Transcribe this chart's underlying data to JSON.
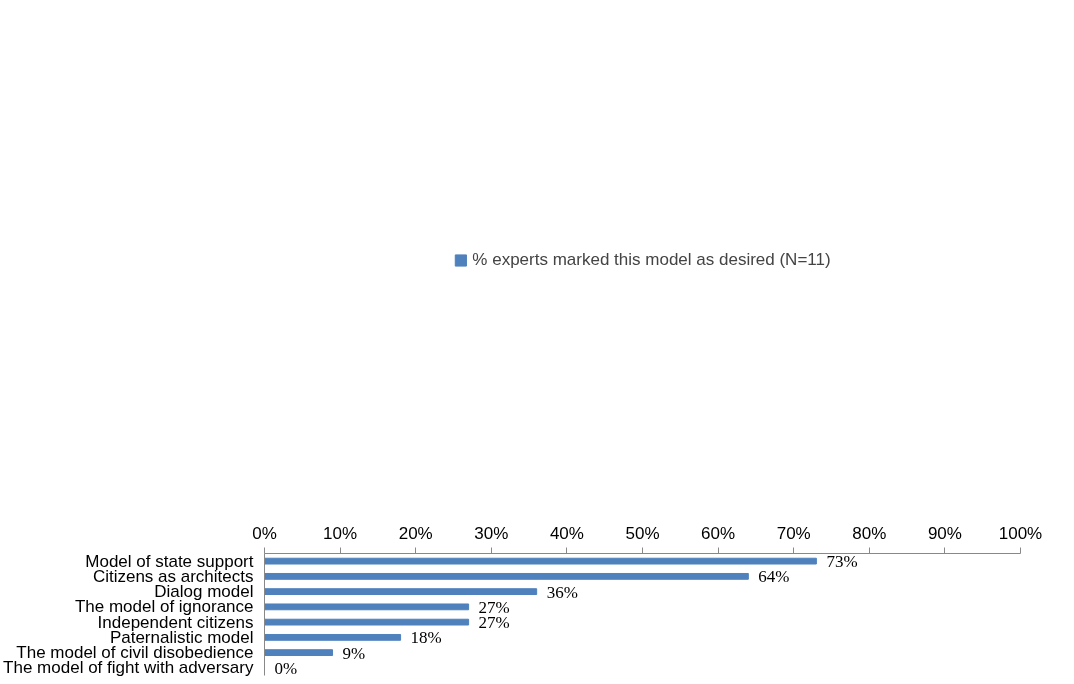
{
  "chart_data": {
    "type": "bar",
    "orientation": "horizontal",
    "categories": [
      "Model of state support",
      "Citizens as architects",
      "Dialog model",
      "The model of ignorance",
      "Independent citizens",
      "Paternalistic model",
      "The model of civil disobedience",
      "The model of fight with adversary"
    ],
    "series": [
      {
        "name": "% experts marked this model as desired (N=11)",
        "color": "#4f81bd",
        "values": [
          73,
          64,
          36,
          27,
          27,
          18,
          9,
          0
        ],
        "value_labels": [
          "73%",
          "64%",
          "36%",
          "27%",
          "27%",
          "18%",
          "9%",
          "0%"
        ]
      }
    ],
    "xlim": [
      0,
      100
    ],
    "xticks": [
      {
        "value": 0,
        "label": "0%"
      },
      {
        "value": 10,
        "label": "10%"
      },
      {
        "value": 20,
        "label": "20%"
      },
      {
        "value": 30,
        "label": "30%"
      },
      {
        "value": 40,
        "label": "40%"
      },
      {
        "value": 50,
        "label": "50%"
      },
      {
        "value": 60,
        "label": "60%"
      },
      {
        "value": 70,
        "label": "70%"
      },
      {
        "value": 80,
        "label": "80%"
      },
      {
        "value": 90,
        "label": "90%"
      },
      {
        "value": 100,
        "label": "100%"
      }
    ],
    "legend": "top",
    "grid": false
  }
}
